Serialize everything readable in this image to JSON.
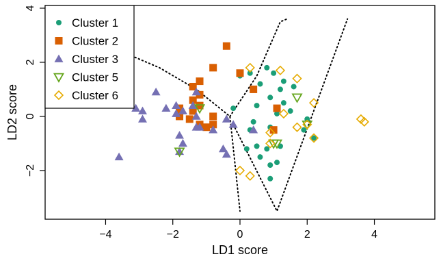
{
  "chart_data": {
    "type": "scatter",
    "xlabel": "LD1 score",
    "ylabel": "LD2 score",
    "xlim": [
      -5.8,
      5.8
    ],
    "ylim": [
      -3.8,
      4.1
    ],
    "xticks": [
      -4,
      -2,
      0,
      2,
      4
    ],
    "yticks": [
      -2,
      0,
      2,
      4
    ],
    "x_tick_labels": [
      "−4",
      "−2",
      "0",
      "2",
      "4"
    ],
    "y_tick_labels": [
      "−2",
      "0",
      "2",
      "4"
    ],
    "grid": false,
    "legend_position": "top-left",
    "series": [
      {
        "name": "Cluster 1",
        "marker": "circle-filled",
        "color": "#1b9e77",
        "points": [
          [
            0.8,
            1.8
          ],
          [
            1.0,
            1.6
          ],
          [
            0.0,
            1.5
          ],
          [
            0.3,
            1.6
          ],
          [
            0.6,
            1.2
          ],
          [
            1.2,
            1.0
          ],
          [
            1.3,
            1.3
          ],
          [
            1.6,
            1.1
          ],
          [
            -0.2,
            0.3
          ],
          [
            0.9,
            0.7
          ],
          [
            1.1,
            0.1
          ],
          [
            0.5,
            0.4
          ],
          [
            1.3,
            0.5
          ],
          [
            1.5,
            0.2
          ],
          [
            2.0,
            -0.1
          ],
          [
            1.9,
            -0.5
          ],
          [
            0.4,
            -0.2
          ],
          [
            0.9,
            -0.4
          ],
          [
            0.2,
            -1.2
          ],
          [
            0.5,
            -1.1
          ],
          [
            0.8,
            -1.2
          ],
          [
            0.6,
            -1.5
          ],
          [
            0.9,
            -1.8
          ],
          [
            1.1,
            -1.7
          ],
          [
            0.9,
            -2.3
          ],
          [
            1.2,
            -1.1
          ],
          [
            0.3,
            -0.5
          ],
          [
            2.2,
            -0.8
          ]
        ]
      },
      {
        "name": "Cluster 2",
        "marker": "square-filled",
        "color": "#d95f02",
        "points": [
          [
            -0.4,
            2.6
          ],
          [
            -0.8,
            1.8
          ],
          [
            0.0,
            1.6
          ],
          [
            -1.2,
            1.3
          ],
          [
            -1.4,
            1.1
          ],
          [
            -1.2,
            0.8
          ],
          [
            -1.4,
            0.6
          ],
          [
            0.4,
            1.0
          ],
          [
            -1.8,
            0.3
          ],
          [
            -1.4,
            0.2
          ],
          [
            -1.2,
            0.4
          ],
          [
            -0.8,
            0.0
          ],
          [
            -0.8,
            -0.3
          ],
          [
            -1.0,
            -0.4
          ],
          [
            -1.8,
            0.1
          ],
          [
            -1.5,
            -0.1
          ],
          [
            -1.8,
            0.0
          ],
          [
            1.1,
            0.3
          ],
          [
            1.0,
            -0.5
          ],
          [
            -1.2,
            -0.3
          ]
        ]
      },
      {
        "name": "Cluster 3",
        "marker": "triangle-filled",
        "color": "#7570b3",
        "points": [
          [
            -2.5,
            0.9
          ],
          [
            -3.1,
            0.3
          ],
          [
            -2.9,
            0.2
          ],
          [
            -2.9,
            -0.1
          ],
          [
            -2.2,
            0.3
          ],
          [
            -1.9,
            0.4
          ],
          [
            -1.9,
            0.1
          ],
          [
            -1.7,
            0.2
          ],
          [
            -1.3,
            0.9
          ],
          [
            -1.3,
            0.0
          ],
          [
            -1.2,
            -0.4
          ],
          [
            -1.3,
            -0.4
          ],
          [
            -1.8,
            -0.7
          ],
          [
            -1.7,
            -1.0
          ],
          [
            -1.8,
            -1.3
          ],
          [
            -0.4,
            -0.1
          ],
          [
            -0.2,
            -0.3
          ],
          [
            -0.8,
            -0.5
          ],
          [
            -0.5,
            -1.2
          ],
          [
            -0.4,
            -1.4
          ],
          [
            -3.6,
            -1.5
          ],
          [
            -1.4,
            0.4
          ],
          [
            0.4,
            -0.5
          ]
        ]
      },
      {
        "name": "Cluster 5",
        "marker": "triangle-down-open",
        "color": "#66a61e",
        "points": [
          [
            1.7,
            0.7
          ],
          [
            -1.2,
            0.3
          ],
          [
            -1.8,
            -1.3
          ],
          [
            1.0,
            -1.0
          ],
          [
            1.1,
            -1.0
          ],
          [
            2.0,
            -0.3
          ]
        ]
      },
      {
        "name": "Cluster 6",
        "marker": "diamond-open",
        "color": "#e6ab02",
        "points": [
          [
            0.3,
            1.8
          ],
          [
            1.2,
            1.7
          ],
          [
            1.7,
            1.4
          ],
          [
            2.2,
            0.5
          ],
          [
            1.3,
            0.1
          ],
          [
            1.7,
            -0.4
          ],
          [
            2.0,
            -0.3
          ],
          [
            2.2,
            -0.8
          ],
          [
            0.9,
            -1.0
          ],
          [
            0.0,
            -2.0
          ],
          [
            0.3,
            -2.2
          ],
          [
            3.6,
            -0.1
          ],
          [
            3.7,
            -0.2
          ],
          [
            0.9,
            -0.6
          ]
        ]
      }
    ],
    "boundaries": [
      {
        "style": "dotted",
        "color": "#000000",
        "points": [
          [
            -5.8,
            3.6
          ],
          [
            -2.4,
            1.8
          ],
          [
            -1.3,
            1.0
          ],
          [
            -0.3,
            0.0
          ],
          [
            -0.3,
            0.0
          ],
          [
            0.0,
            -3.5
          ]
        ]
      },
      {
        "style": "dotted",
        "color": "#000000",
        "points": [
          [
            -0.3,
            0.0
          ],
          [
            0.5,
            1.5
          ],
          [
            1.2,
            3.5
          ],
          [
            1.4,
            3.6
          ]
        ]
      },
      {
        "style": "dotted",
        "color": "#000000",
        "points": [
          [
            -0.2,
            -0.3
          ],
          [
            1.1,
            -3.5
          ],
          [
            3.2,
            3.6
          ]
        ]
      }
    ]
  }
}
